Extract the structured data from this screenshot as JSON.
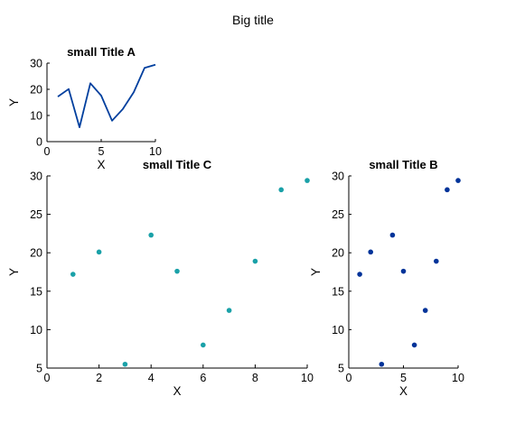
{
  "figure": {
    "title": "Big title",
    "colors": {
      "line_a": "#003f9e",
      "scatter_c": "#1aa1a8",
      "scatter_b": "#003399"
    }
  },
  "chart_data": [
    {
      "id": "A",
      "type": "line",
      "title": "small Title A",
      "xlabel": "X",
      "ylabel": "Y",
      "xlim": [
        0,
        10
      ],
      "ylim": [
        0,
        30
      ],
      "xticks": [
        0,
        5,
        10
      ],
      "yticks": [
        0,
        10,
        20,
        30
      ],
      "grid": false,
      "x": [
        1,
        2,
        3,
        4,
        5,
        6,
        7,
        8,
        9,
        10
      ],
      "y": [
        17.2,
        20.1,
        5.5,
        22.3,
        17.6,
        8.0,
        12.5,
        18.9,
        28.2,
        29.4
      ]
    },
    {
      "id": "C",
      "type": "scatter",
      "title": "small Title C",
      "xlabel": "X",
      "ylabel": "Y",
      "xlim": [
        0,
        10
      ],
      "ylim": [
        5,
        30
      ],
      "xticks": [
        0,
        2,
        4,
        6,
        8,
        10
      ],
      "yticks": [
        5,
        10,
        15,
        20,
        25,
        30
      ],
      "grid": false,
      "x": [
        1,
        2,
        3,
        4,
        5,
        6,
        7,
        8,
        9,
        10
      ],
      "y": [
        17.2,
        20.1,
        5.5,
        22.3,
        17.6,
        8.0,
        12.5,
        18.9,
        28.2,
        29.4
      ]
    },
    {
      "id": "B",
      "type": "scatter",
      "title": "small Title B",
      "xlabel": "X",
      "ylabel": "Y",
      "xlim": [
        0,
        10
      ],
      "ylim": [
        5,
        30
      ],
      "xticks": [
        0,
        5,
        10
      ],
      "yticks": [
        5,
        10,
        15,
        20,
        25,
        30
      ],
      "grid": false,
      "x": [
        1,
        2,
        3,
        4,
        5,
        6,
        7,
        8,
        9,
        10
      ],
      "y": [
        17.2,
        20.1,
        5.5,
        22.3,
        17.6,
        8.0,
        12.5,
        18.9,
        28.2,
        29.4
      ]
    }
  ]
}
